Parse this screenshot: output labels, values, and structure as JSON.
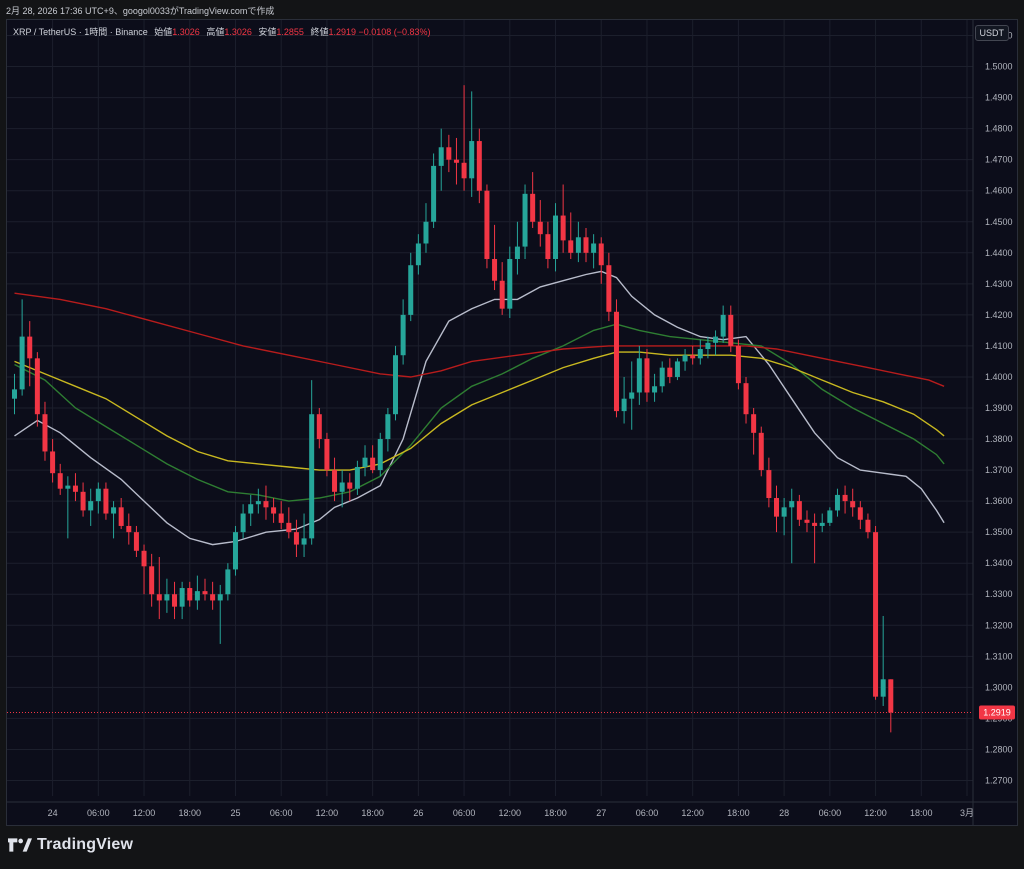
{
  "caption": "2月 28, 2026 17:36 UTC+9、googol0033がTradingView.comで作成",
  "legend": {
    "symbol": "XRP / TetherUS · 1時間 · Binance",
    "open_label": "始値",
    "open": "1.3026",
    "high_label": "高値",
    "high": "1.3026",
    "low_label": "安値",
    "low": "1.2855",
    "close_label": "終値",
    "close": "1.2919",
    "change": "−0.0108 (−0.83%)"
  },
  "currency_button": "USDT",
  "brand": "TradingView",
  "colors": {
    "background": "#0c0d1a",
    "grid": "#1c1f2c",
    "up": "#26a69a",
    "down": "#f23645",
    "ma_white": "#b8bccb",
    "ma_green": "#2e7d32",
    "ma_yellow": "#c8b820",
    "ma_red": "#b71c1c",
    "last_price": "#f23645",
    "text": "#b2b5be"
  },
  "chart_data": {
    "type": "candlestick",
    "timeframe": "1時間",
    "ylim": [
      1.265,
      1.515
    ],
    "y_ticks": [
      "1.2700",
      "1.2800",
      "1.2900",
      "1.3000",
      "1.3100",
      "1.3200",
      "1.3300",
      "1.3400",
      "1.3500",
      "1.3600",
      "1.3700",
      "1.3800",
      "1.3900",
      "1.4000",
      "1.4100",
      "1.4200",
      "1.4300",
      "1.4400",
      "1.4500",
      "1.4600",
      "1.4700",
      "1.4800",
      "1.4900",
      "1.5000",
      "1.5100"
    ],
    "x_ticks": [
      {
        "label": "24",
        "i": 5
      },
      {
        "label": "06:00",
        "i": 11
      },
      {
        "label": "12:00",
        "i": 17
      },
      {
        "label": "18:00",
        "i": 23
      },
      {
        "label": "25",
        "i": 29
      },
      {
        "label": "06:00",
        "i": 35
      },
      {
        "label": "12:00",
        "i": 41
      },
      {
        "label": "18:00",
        "i": 47
      },
      {
        "label": "26",
        "i": 53
      },
      {
        "label": "06:00",
        "i": 59
      },
      {
        "label": "12:00",
        "i": 65
      },
      {
        "label": "18:00",
        "i": 71
      },
      {
        "label": "27",
        "i": 77
      },
      {
        "label": "06:00",
        "i": 83
      },
      {
        "label": "12:00",
        "i": 89
      },
      {
        "label": "18:00",
        "i": 95
      },
      {
        "label": "28",
        "i": 101
      },
      {
        "label": "06:00",
        "i": 107
      },
      {
        "label": "12:00",
        "i": 113
      },
      {
        "label": "18:00",
        "i": 119
      },
      {
        "label": "3月",
        "i": 125
      }
    ],
    "last_price": "1.2919",
    "ohlc": [
      [
        1.393,
        1.401,
        1.388,
        1.396
      ],
      [
        1.396,
        1.425,
        1.394,
        1.413
      ],
      [
        1.413,
        1.418,
        1.397,
        1.406
      ],
      [
        1.406,
        1.408,
        1.384,
        1.388
      ],
      [
        1.388,
        1.392,
        1.373,
        1.376
      ],
      [
        1.376,
        1.38,
        1.366,
        1.369
      ],
      [
        1.369,
        1.372,
        1.362,
        1.364
      ],
      [
        1.364,
        1.368,
        1.348,
        1.365
      ],
      [
        1.365,
        1.369,
        1.36,
        1.363
      ],
      [
        1.363,
        1.366,
        1.355,
        1.357
      ],
      [
        1.357,
        1.364,
        1.352,
        1.36
      ],
      [
        1.36,
        1.366,
        1.356,
        1.364
      ],
      [
        1.364,
        1.366,
        1.354,
        1.356
      ],
      [
        1.356,
        1.36,
        1.348,
        1.358
      ],
      [
        1.358,
        1.361,
        1.351,
        1.352
      ],
      [
        1.352,
        1.356,
        1.346,
        1.35
      ],
      [
        1.35,
        1.352,
        1.342,
        1.344
      ],
      [
        1.344,
        1.346,
        1.33,
        1.339
      ],
      [
        1.339,
        1.343,
        1.326,
        1.33
      ],
      [
        1.33,
        1.342,
        1.322,
        1.328
      ],
      [
        1.328,
        1.335,
        1.324,
        1.33
      ],
      [
        1.33,
        1.334,
        1.322,
        1.326
      ],
      [
        1.326,
        1.334,
        1.322,
        1.332
      ],
      [
        1.332,
        1.334,
        1.326,
        1.328
      ],
      [
        1.328,
        1.336,
        1.325,
        1.331
      ],
      [
        1.331,
        1.335,
        1.328,
        1.33
      ],
      [
        1.33,
        1.334,
        1.325,
        1.328
      ],
      [
        1.328,
        1.333,
        1.314,
        1.33
      ],
      [
        1.33,
        1.34,
        1.328,
        1.338
      ],
      [
        1.338,
        1.352,
        1.336,
        1.35
      ],
      [
        1.35,
        1.359,
        1.348,
        1.356
      ],
      [
        1.356,
        1.362,
        1.352,
        1.359
      ],
      [
        1.359,
        1.364,
        1.356,
        1.36
      ],
      [
        1.36,
        1.365,
        1.354,
        1.358
      ],
      [
        1.358,
        1.361,
        1.353,
        1.356
      ],
      [
        1.356,
        1.36,
        1.351,
        1.353
      ],
      [
        1.353,
        1.358,
        1.348,
        1.35
      ],
      [
        1.35,
        1.354,
        1.342,
        1.346
      ],
      [
        1.346,
        1.356,
        1.342,
        1.348
      ],
      [
        1.348,
        1.399,
        1.346,
        1.388
      ],
      [
        1.388,
        1.39,
        1.377,
        1.38
      ],
      [
        1.38,
        1.382,
        1.368,
        1.37
      ],
      [
        1.37,
        1.374,
        1.36,
        1.363
      ],
      [
        1.363,
        1.37,
        1.358,
        1.366
      ],
      [
        1.366,
        1.369,
        1.36,
        1.364
      ],
      [
        1.364,
        1.373,
        1.362,
        1.371
      ],
      [
        1.371,
        1.378,
        1.368,
        1.374
      ],
      [
        1.374,
        1.378,
        1.369,
        1.37
      ],
      [
        1.37,
        1.382,
        1.368,
        1.38
      ],
      [
        1.38,
        1.39,
        1.376,
        1.388
      ],
      [
        1.388,
        1.41,
        1.386,
        1.407
      ],
      [
        1.407,
        1.425,
        1.404,
        1.42
      ],
      [
        1.42,
        1.44,
        1.418,
        1.436
      ],
      [
        1.436,
        1.446,
        1.433,
        1.443
      ],
      [
        1.443,
        1.456,
        1.44,
        1.45
      ],
      [
        1.45,
        1.472,
        1.448,
        1.468
      ],
      [
        1.468,
        1.48,
        1.46,
        1.474
      ],
      [
        1.474,
        1.478,
        1.466,
        1.47
      ],
      [
        1.47,
        1.477,
        1.462,
        1.469
      ],
      [
        1.469,
        1.494,
        1.46,
        1.464
      ],
      [
        1.464,
        1.492,
        1.458,
        1.476
      ],
      [
        1.476,
        1.48,
        1.456,
        1.46
      ],
      [
        1.46,
        1.462,
        1.435,
        1.438
      ],
      [
        1.438,
        1.449,
        1.428,
        1.431
      ],
      [
        1.431,
        1.437,
        1.42,
        1.422
      ],
      [
        1.422,
        1.442,
        1.419,
        1.438
      ],
      [
        1.438,
        1.45,
        1.433,
        1.442
      ],
      [
        1.442,
        1.462,
        1.438,
        1.459
      ],
      [
        1.459,
        1.466,
        1.448,
        1.45
      ],
      [
        1.45,
        1.457,
        1.442,
        1.446
      ],
      [
        1.446,
        1.45,
        1.435,
        1.438
      ],
      [
        1.438,
        1.456,
        1.434,
        1.452
      ],
      [
        1.452,
        1.462,
        1.44,
        1.444
      ],
      [
        1.444,
        1.453,
        1.438,
        1.44
      ],
      [
        1.44,
        1.45,
        1.437,
        1.445
      ],
      [
        1.445,
        1.448,
        1.437,
        1.44
      ],
      [
        1.44,
        1.446,
        1.435,
        1.443
      ],
      [
        1.443,
        1.445,
        1.43,
        1.436
      ],
      [
        1.436,
        1.44,
        1.418,
        1.421
      ],
      [
        1.421,
        1.425,
        1.387,
        1.389
      ],
      [
        1.389,
        1.4,
        1.385,
        1.393
      ],
      [
        1.393,
        1.405,
        1.383,
        1.395
      ],
      [
        1.395,
        1.41,
        1.391,
        1.406
      ],
      [
        1.406,
        1.409,
        1.392,
        1.395
      ],
      [
        1.395,
        1.401,
        1.392,
        1.397
      ],
      [
        1.397,
        1.405,
        1.395,
        1.403
      ],
      [
        1.403,
        1.406,
        1.398,
        1.4
      ],
      [
        1.4,
        1.406,
        1.399,
        1.405
      ],
      [
        1.405,
        1.409,
        1.402,
        1.407
      ],
      [
        1.407,
        1.41,
        1.404,
        1.406
      ],
      [
        1.406,
        1.412,
        1.404,
        1.409
      ],
      [
        1.409,
        1.413,
        1.406,
        1.411
      ],
      [
        1.411,
        1.415,
        1.407,
        1.413
      ],
      [
        1.413,
        1.423,
        1.411,
        1.42
      ],
      [
        1.42,
        1.423,
        1.408,
        1.41
      ],
      [
        1.41,
        1.412,
        1.396,
        1.398
      ],
      [
        1.398,
        1.4,
        1.385,
        1.388
      ],
      [
        1.388,
        1.39,
        1.375,
        1.382
      ],
      [
        1.382,
        1.384,
        1.368,
        1.37
      ],
      [
        1.37,
        1.374,
        1.358,
        1.361
      ],
      [
        1.361,
        1.365,
        1.35,
        1.355
      ],
      [
        1.355,
        1.361,
        1.349,
        1.358
      ],
      [
        1.358,
        1.364,
        1.34,
        1.36
      ],
      [
        1.36,
        1.362,
        1.352,
        1.354
      ],
      [
        1.354,
        1.357,
        1.35,
        1.353
      ],
      [
        1.353,
        1.356,
        1.34,
        1.352
      ],
      [
        1.352,
        1.356,
        1.35,
        1.353
      ],
      [
        1.353,
        1.358,
        1.352,
        1.357
      ],
      [
        1.357,
        1.364,
        1.355,
        1.362
      ],
      [
        1.362,
        1.365,
        1.356,
        1.36
      ],
      [
        1.36,
        1.364,
        1.355,
        1.358
      ],
      [
        1.358,
        1.36,
        1.351,
        1.354
      ],
      [
        1.354,
        1.356,
        1.348,
        1.35
      ],
      [
        1.35,
        1.352,
        1.296,
        1.297
      ],
      [
        1.297,
        1.323,
        1.294,
        1.3026
      ],
      [
        1.3026,
        1.3026,
        1.2855,
        1.2919
      ]
    ],
    "series": [
      {
        "color": "#b8bccb",
        "points": [
          [
            0,
            1.381
          ],
          [
            3,
            1.386
          ],
          [
            6,
            1.382
          ],
          [
            10,
            1.374
          ],
          [
            14,
            1.367
          ],
          [
            17,
            1.36
          ],
          [
            20,
            1.353
          ],
          [
            23,
            1.348
          ],
          [
            26,
            1.346
          ],
          [
            29,
            1.347
          ],
          [
            33,
            1.35
          ],
          [
            37,
            1.351
          ],
          [
            40,
            1.354
          ],
          [
            42,
            1.358
          ],
          [
            45,
            1.361
          ],
          [
            48,
            1.365
          ],
          [
            51,
            1.38
          ],
          [
            54,
            1.405
          ],
          [
            57,
            1.418
          ],
          [
            60,
            1.422
          ],
          [
            63,
            1.425
          ],
          [
            66,
            1.425
          ],
          [
            69,
            1.429
          ],
          [
            72,
            1.431
          ],
          [
            75,
            1.433
          ],
          [
            77,
            1.434
          ],
          [
            79,
            1.432
          ],
          [
            81,
            1.426
          ],
          [
            84,
            1.42
          ],
          [
            87,
            1.416
          ],
          [
            90,
            1.413
          ],
          [
            93,
            1.412
          ],
          [
            96,
            1.413
          ],
          [
            99,
            1.404
          ],
          [
            102,
            1.393
          ],
          [
            105,
            1.382
          ],
          [
            108,
            1.374
          ],
          [
            111,
            1.37
          ],
          [
            114,
            1.369
          ],
          [
            117,
            1.368
          ],
          [
            119,
            1.364
          ],
          [
            121,
            1.357
          ],
          [
            122,
            1.353
          ]
        ]
      },
      {
        "color": "#2e7d32",
        "points": [
          [
            0,
            1.404
          ],
          [
            4,
            1.399
          ],
          [
            8,
            1.39
          ],
          [
            12,
            1.384
          ],
          [
            16,
            1.378
          ],
          [
            20,
            1.372
          ],
          [
            24,
            1.367
          ],
          [
            28,
            1.363
          ],
          [
            32,
            1.362
          ],
          [
            36,
            1.36
          ],
          [
            40,
            1.361
          ],
          [
            44,
            1.363
          ],
          [
            48,
            1.368
          ],
          [
            52,
            1.378
          ],
          [
            56,
            1.39
          ],
          [
            60,
            1.397
          ],
          [
            64,
            1.401
          ],
          [
            68,
            1.406
          ],
          [
            72,
            1.41
          ],
          [
            76,
            1.415
          ],
          [
            79,
            1.417
          ],
          [
            82,
            1.415
          ],
          [
            86,
            1.413
          ],
          [
            90,
            1.412
          ],
          [
            94,
            1.411
          ],
          [
            98,
            1.41
          ],
          [
            102,
            1.404
          ],
          [
            106,
            1.396
          ],
          [
            110,
            1.39
          ],
          [
            114,
            1.385
          ],
          [
            118,
            1.38
          ],
          [
            121,
            1.375
          ],
          [
            122,
            1.372
          ]
        ]
      },
      {
        "color": "#c8b820",
        "points": [
          [
            0,
            1.405
          ],
          [
            4,
            1.401
          ],
          [
            8,
            1.397
          ],
          [
            12,
            1.393
          ],
          [
            16,
            1.387
          ],
          [
            20,
            1.381
          ],
          [
            24,
            1.376
          ],
          [
            28,
            1.373
          ],
          [
            32,
            1.372
          ],
          [
            36,
            1.371
          ],
          [
            40,
            1.37
          ],
          [
            44,
            1.37
          ],
          [
            48,
            1.372
          ],
          [
            52,
            1.377
          ],
          [
            56,
            1.385
          ],
          [
            60,
            1.391
          ],
          [
            64,
            1.395
          ],
          [
            68,
            1.399
          ],
          [
            72,
            1.403
          ],
          [
            76,
            1.406
          ],
          [
            79,
            1.408
          ],
          [
            82,
            1.408
          ],
          [
            86,
            1.407
          ],
          [
            90,
            1.407
          ],
          [
            94,
            1.407
          ],
          [
            98,
            1.406
          ],
          [
            102,
            1.403
          ],
          [
            106,
            1.399
          ],
          [
            110,
            1.395
          ],
          [
            114,
            1.392
          ],
          [
            118,
            1.388
          ],
          [
            121,
            1.383
          ],
          [
            122,
            1.381
          ]
        ]
      },
      {
        "color": "#b71c1c",
        "points": [
          [
            0,
            1.427
          ],
          [
            6,
            1.425
          ],
          [
            12,
            1.422
          ],
          [
            18,
            1.418
          ],
          [
            24,
            1.414
          ],
          [
            30,
            1.41
          ],
          [
            36,
            1.407
          ],
          [
            42,
            1.404
          ],
          [
            48,
            1.401
          ],
          [
            52,
            1.4
          ],
          [
            56,
            1.402
          ],
          [
            60,
            1.405
          ],
          [
            66,
            1.407
          ],
          [
            72,
            1.409
          ],
          [
            78,
            1.41
          ],
          [
            84,
            1.41
          ],
          [
            90,
            1.41
          ],
          [
            96,
            1.41
          ],
          [
            100,
            1.409
          ],
          [
            104,
            1.407
          ],
          [
            108,
            1.405
          ],
          [
            112,
            1.403
          ],
          [
            116,
            1.401
          ],
          [
            120,
            1.399
          ],
          [
            122,
            1.397
          ]
        ]
      }
    ]
  }
}
